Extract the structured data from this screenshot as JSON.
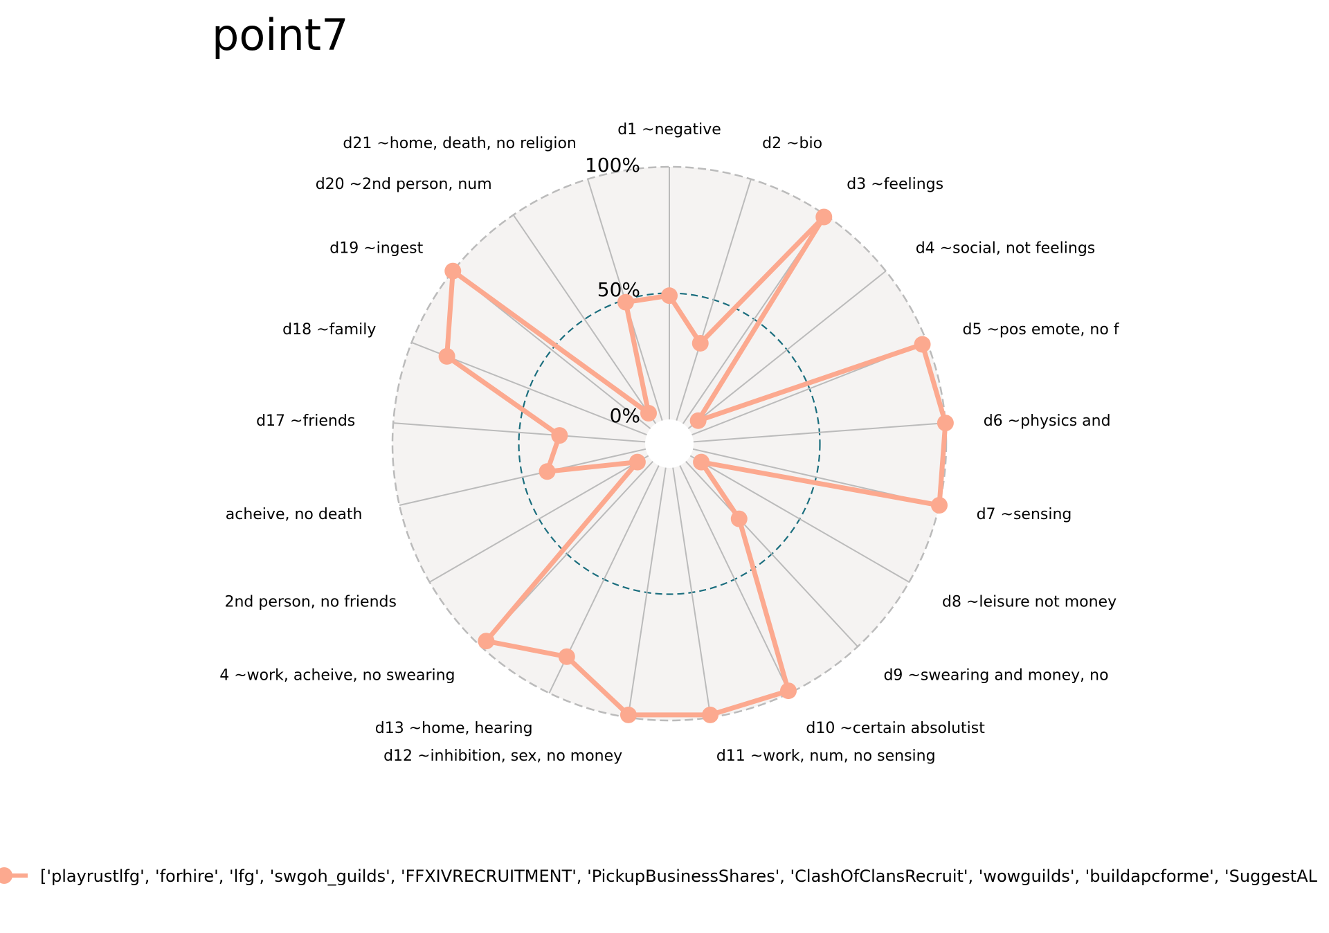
{
  "chart_data": {
    "type": "radar",
    "title": "point7",
    "rlim": [
      0,
      100
    ],
    "tick_labels": [
      "0%",
      "50%",
      "100%"
    ],
    "grid": true,
    "legend_placement": "bottom",
    "colors": {
      "series": "#fca98f",
      "grid_line": "#bbbbbb",
      "outer_ring": "#bbbbbb",
      "mid_ring": "#1b6e7e",
      "background": "#f5f3f2"
    },
    "categories": [
      "d1 ~negative",
      "d2 ~bio",
      "d3 ~feelings",
      "d4 ~social, not feelings",
      "d5 ~pos emote, no f",
      "d6 ~physics and",
      "d7 ~sensing",
      "d8 ~leisure not money",
      "d9 ~swearing and money, no",
      "d10 ~certain absolutist",
      "d11 ~work, num, no sensing",
      "d12 ~inhibition, sex, no money",
      "d13 ~home, hearing",
      "4 ~work, acheive, no swearing",
      "2nd person, no friends",
      "acheive, no death",
      "d17 ~friends",
      "d18 ~family",
      "d19 ~ingest",
      "d20 ~2nd person, num",
      "d21 ~home, death, no religion"
    ],
    "series": [
      {
        "name": "['playrustlfg', 'forhire', 'lfg', 'swgoh_guilds', 'FFXIVRECRUITMENT', 'PickupBusinessShares', 'ClashOfClansRecruit', 'wowguilds', 'buildapcforme', 'SuggestAL",
        "values": [
          49,
          32,
          99,
          5,
          98,
          100,
          100,
          5,
          31,
          99,
          99,
          99,
          84,
          97,
          5,
          40,
          34,
          85,
          100,
          5,
          49
        ]
      }
    ]
  }
}
